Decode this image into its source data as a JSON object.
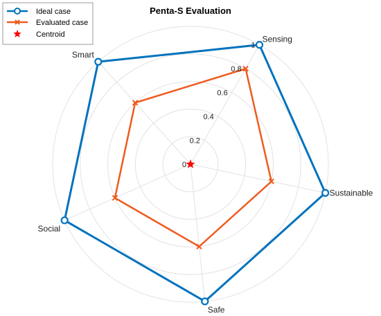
{
  "chart_data": {
    "type": "radar",
    "title": "Penta-S Evaluation",
    "categories": [
      "Sensing",
      "Sustainable",
      "Safe",
      "Social",
      "Smart"
    ],
    "r_ticks": [
      "0",
      "0.2",
      "0.4",
      "0.6",
      "0.8",
      "1"
    ],
    "rlim": [
      0,
      1
    ],
    "grid": true,
    "legend_position": "top-left",
    "series": [
      {
        "name": "Ideal case",
        "values": [
          1,
          1,
          1,
          1,
          1
        ],
        "color": "#0072BD",
        "marker": "circle"
      },
      {
        "name": "Evaluated case",
        "values": [
          0.8,
          0.6,
          0.6,
          0.6,
          0.6
        ],
        "color": "#EE5B1E",
        "marker": "x"
      }
    ],
    "centroid": {
      "name": "Centroid",
      "value": [
        0,
        0
      ],
      "color": "#FF0000",
      "marker": "star"
    }
  }
}
